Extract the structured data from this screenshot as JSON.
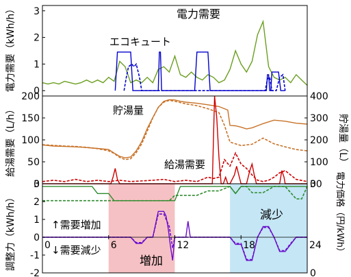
{
  "chart_data": [
    {
      "type": "line",
      "xlim": [
        0,
        24
      ],
      "ylim": [
        -0.2,
        3.2
      ],
      "ylabel": "電力需要（kWh/h）",
      "yticks": [
        0,
        1,
        2,
        3
      ],
      "annotations": [
        "電力需要",
        "エコキュート"
      ],
      "series": [
        {
          "color": "#6a9e1f",
          "style": "solid",
          "x": [
            0,
            0.5,
            1,
            1.5,
            2,
            2.5,
            3,
            3.5,
            4,
            4.5,
            5,
            5.5,
            6,
            6.5,
            7,
            7.5,
            8,
            8.5,
            9,
            9.5,
            10,
            10.5,
            11,
            11.5,
            12,
            12.5,
            13,
            13.5,
            14,
            14.5,
            15,
            15.5,
            16,
            16.5,
            17,
            17.5,
            18,
            18.5,
            19,
            19.5,
            20,
            20.5,
            21,
            21.5,
            22,
            22.5,
            23,
            23.5,
            24
          ],
          "y": [
            0.3,
            0.25,
            0.3,
            0.25,
            0.35,
            0.3,
            0.25,
            0.3,
            0.4,
            0.3,
            0.4,
            0.3,
            0.5,
            0.35,
            1.1,
            0.9,
            0.3,
            0.4,
            0.3,
            0.5,
            0.3,
            0.8,
            0.9,
            0.7,
            1.3,
            0.6,
            0.5,
            0.7,
            0.5,
            0.4,
            0.6,
            0.5,
            0.3,
            0.4,
            0.8,
            1.5,
            1.0,
            0.7,
            1.1,
            2.1,
            2.6,
            0.9,
            0.5,
            0.4,
            0.5,
            0.3,
            0.6,
            0.4,
            0.2
          ]
        },
        {
          "color": "#0000cc",
          "style": "solid",
          "x": [
            6.6,
            6.8,
            7.0,
            7.8,
            8.0,
            8.2,
            10.5,
            10.6,
            10.7,
            10.8,
            13.8,
            14.0,
            15.0,
            15.2,
            20.3,
            20.4,
            20.5,
            20.6,
            20.7,
            20.8,
            21.4,
            21.6,
            21.9,
            22.0
          ],
          "y": [
            0,
            1.45,
            1.45,
            1.45,
            1.45,
            0,
            0,
            1.45,
            1.45,
            0,
            0,
            1.45,
            1.45,
            0,
            0,
            0.6,
            0.6,
            0,
            0,
            0.7,
            0.7,
            0,
            0,
            0
          ]
        },
        {
          "color": "#0000cc",
          "style": "dashed",
          "x": [
            7.4,
            7.6,
            7.8,
            8.1,
            8.3,
            8.5,
            8.8,
            9.0,
            20.2,
            20.4,
            20.6,
            20.8,
            21.2,
            21.5,
            21.8,
            22.0
          ],
          "y": [
            0,
            0.5,
            0.9,
            1.0,
            0.9,
            1.0,
            0.5,
            0,
            0,
            0.45,
            0.5,
            0,
            0,
            0.5,
            0.6,
            0
          ]
        }
      ]
    },
    {
      "type": "line",
      "xlim": [
        0,
        24
      ],
      "ylim": [
        0,
        200
      ],
      "y2lim": [
        0,
        400
      ],
      "ylabel": "給湯需要（L/h）",
      "y2label": "貯湯量（L）",
      "yticks": [
        0,
        50,
        100,
        150,
        200
      ],
      "y2ticks": [
        0,
        100,
        200,
        300,
        400
      ],
      "annotations": [
        "貯湯量",
        "給湯需要"
      ],
      "series": [
        {
          "axis": "right",
          "color": "#c87228",
          "style": "solid",
          "x": [
            0,
            1,
            2,
            3,
            4,
            5,
            6,
            6.5,
            7,
            7.5,
            8,
            8.5,
            9,
            9.5,
            10,
            10.5,
            11,
            11.5,
            12,
            12.5,
            13,
            14,
            15,
            16,
            16.8,
            17,
            17.5,
            18,
            18.5,
            19,
            20,
            21,
            22,
            23,
            24
          ],
          "y": [
            177,
            172,
            170,
            168,
            165,
            161,
            156,
            140,
            125,
            118,
            122,
            150,
            192,
            252,
            302,
            348,
            376,
            383,
            382,
            376,
            372,
            367,
            360,
            352,
            336,
            266,
            264,
            258,
            250,
            255,
            274,
            290,
            285,
            276,
            272
          ]
        },
        {
          "axis": "right",
          "color": "#c87228",
          "style": "dashed",
          "x": [
            0,
            1,
            2,
            3,
            4,
            5,
            6,
            6.5,
            7,
            7.5,
            8,
            8.5,
            9,
            9.5,
            10,
            10.5,
            11,
            11.5,
            12,
            12.5,
            13,
            14,
            15,
            16,
            16.5,
            17,
            17.5,
            18,
            19,
            20,
            21,
            22,
            23,
            24
          ],
          "y": [
            178,
            175,
            172,
            170,
            166,
            160,
            150,
            138,
            120,
            110,
            114,
            142,
            182,
            240,
            300,
            348,
            372,
            380,
            376,
            370,
            364,
            356,
            342,
            324,
            266,
            190,
            182,
            174,
            180,
            208,
            182,
            168,
            156,
            150
          ]
        },
        {
          "axis": "left",
          "color": "#cc0000",
          "style": "solid",
          "x": [
            0,
            6,
            6.2,
            6.4,
            6.6,
            6.8,
            7,
            7.5,
            8,
            10,
            11,
            12,
            13,
            14,
            15,
            15.4,
            15.6,
            15.8,
            16,
            16.2,
            16.4,
            16.6,
            16.8,
            17,
            17.4,
            17.6,
            17.8,
            18,
            18.5,
            18.8,
            19,
            19.2,
            19.4,
            19.6,
            19.8,
            20,
            21,
            21.5,
            21.7,
            21.9,
            22,
            24
          ],
          "y": [
            0,
            0,
            0,
            15,
            35,
            10,
            0,
            0,
            0,
            0,
            0,
            0,
            0,
            0,
            0,
            0,
            200,
            150,
            60,
            0,
            0,
            15,
            0,
            0,
            20,
            40,
            20,
            0,
            0,
            30,
            45,
            20,
            0,
            0,
            0,
            0,
            0,
            0,
            30,
            15,
            0,
            0
          ]
        },
        {
          "axis": "left",
          "color": "#cc0000",
          "style": "dashed",
          "x": [
            0,
            1,
            2,
            3,
            4,
            5,
            6,
            7,
            8,
            10,
            11,
            12,
            13,
            14,
            15,
            15.5,
            16,
            16.5,
            17,
            17.5,
            18,
            18.5,
            19,
            19.5,
            20,
            20.5,
            21,
            21.5,
            22,
            22.5,
            23,
            24
          ],
          "y": [
            5,
            8,
            5,
            10,
            5,
            8,
            5,
            8,
            5,
            8,
            10,
            5,
            8,
            5,
            15,
            12,
            15,
            55,
            40,
            70,
            45,
            35,
            20,
            8,
            5,
            8,
            15,
            25,
            30,
            20,
            10,
            5
          ]
        }
      ]
    },
    {
      "type": "line",
      "xlim": [
        0,
        24
      ],
      "ylim": [
        -2,
        3
      ],
      "y2lim": [
        0,
        30
      ],
      "ylabel": "調整力（kWh/h）",
      "y2label": "電力価格（円/kWh）",
      "yticks": [
        -2,
        -1,
        0,
        1,
        2,
        3
      ],
      "xticks": [
        0,
        6,
        12,
        18,
        24
      ],
      "y2ticks": [
        0,
        30
      ],
      "annotations": [
        "↑需要増加",
        "↓需要減少",
        "増加",
        "減少"
      ],
      "shaded_regions": [
        {
          "x": [
            6,
            12
          ],
          "color": "#f6c1c4",
          "label": "増加"
        },
        {
          "x": [
            17,
            24
          ],
          "color": "#c4e6f5",
          "label": "減少"
        }
      ],
      "series": [
        {
          "color": "#2e8b2e",
          "style": "solid",
          "x": [
            0,
            4.5,
            5,
            6,
            6.5,
            7,
            12,
            12.5,
            13,
            13.5,
            17,
            17.5,
            18,
            24
          ],
          "y": [
            2.85,
            2.85,
            2.45,
            2.45,
            2.05,
            2.05,
            2.05,
            2.85,
            2.85,
            2.85,
            2.85,
            2.45,
            2.85,
            2.85
          ]
        },
        {
          "color": "#2e8b2e",
          "style": "dashed",
          "x": [
            0,
            6,
            6.5,
            7,
            11.5,
            12,
            14,
            15,
            16,
            17,
            17.5,
            18,
            18.5,
            19,
            20,
            21,
            22,
            23,
            23.5,
            24
          ],
          "y": [
            2.05,
            2.05,
            2.05,
            2.05,
            2.05,
            2.35,
            2.35,
            2.6,
            2.6,
            2.85,
            2.45,
            2.85,
            2.85,
            2.5,
            2.5,
            2.85,
            2.85,
            2.15,
            2.15,
            2.85
          ]
        },
        {
          "color": "#6a0dcc",
          "style": "solid",
          "x": [
            0,
            6,
            8,
            8.5,
            9,
            9.5,
            10,
            10.5,
            11,
            11.2,
            11.4,
            11.6,
            11.8,
            12,
            13,
            13.2,
            13.4,
            14,
            17,
            17.5,
            18,
            18.5,
            19,
            19.5,
            20,
            20.5,
            21,
            21.5,
            22,
            22.5,
            23,
            24
          ],
          "y": [
            0,
            0,
            0,
            -0.35,
            -0.35,
            0,
            0,
            1.45,
            1.45,
            1.2,
            0.5,
            -0.5,
            -1.3,
            0,
            0,
            0.9,
            0,
            0,
            0,
            -0.4,
            -0.4,
            -1.3,
            -1.3,
            0,
            0.6,
            0.6,
            0,
            -0.8,
            -0.8,
            -0.4,
            0,
            0
          ]
        },
        {
          "color": "#6a0dcc",
          "style": "dashed",
          "x": [
            0,
            6,
            8,
            8.5,
            9,
            9.5,
            10,
            10.5,
            11,
            11.5,
            11.8,
            12,
            17,
            17.5,
            18,
            18.5,
            19,
            19.5,
            20,
            20.5,
            21,
            21.5,
            22,
            22.5,
            23,
            24
          ],
          "y": [
            0,
            0,
            0,
            -0.3,
            -0.3,
            0,
            0,
            1.3,
            1.3,
            0.6,
            -0.6,
            0,
            0,
            -0.35,
            -0.35,
            -1.25,
            -1.25,
            0,
            0.55,
            0.55,
            0,
            -0.75,
            -0.75,
            -0.35,
            0,
            0
          ]
        }
      ]
    }
  ]
}
